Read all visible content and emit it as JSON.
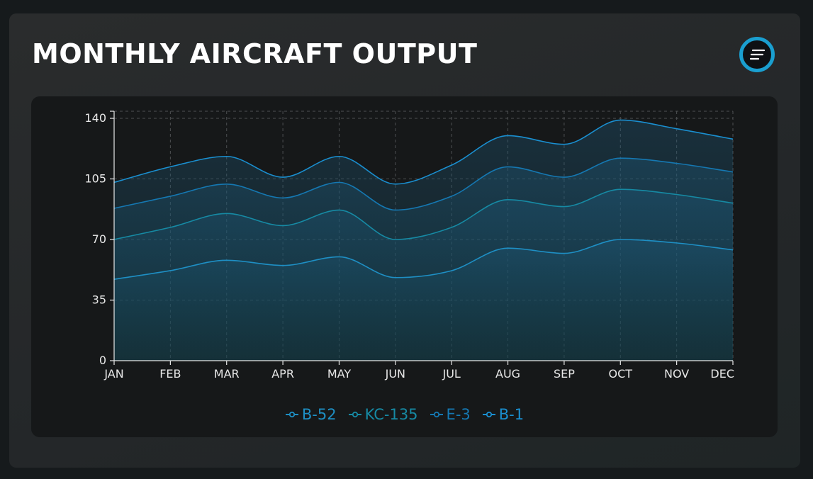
{
  "card": {
    "title": "MONTHLY AIRCRAFT OUTPUT",
    "menu_icon": "menu-lines-icon"
  },
  "chart_data": {
    "type": "area",
    "stacked": true,
    "categories": [
      "JAN",
      "FEB",
      "MAR",
      "APR",
      "MAY",
      "JUN",
      "JUL",
      "AUG",
      "SEP",
      "OCT",
      "NOV",
      "DEC"
    ],
    "series": [
      {
        "name": "B-52",
        "values": [
          47,
          52,
          58,
          55,
          60,
          48,
          52,
          65,
          62,
          70,
          68,
          64
        ],
        "color": "#1e8fc4"
      },
      {
        "name": "KC-135",
        "values": [
          23,
          25,
          27,
          23,
          27,
          22,
          25,
          28,
          27,
          29,
          28,
          27
        ],
        "color": "#168aa4"
      },
      {
        "name": "E-3",
        "values": [
          18,
          18,
          17,
          16,
          16,
          17,
          18,
          19,
          17,
          18,
          18,
          18
        ],
        "color": "#1578b2"
      },
      {
        "name": "B-1",
        "values": [
          15,
          17,
          16,
          12,
          15,
          15,
          18,
          18,
          19,
          22,
          20,
          19
        ],
        "color": "#1a8fd0"
      }
    ],
    "y_ticks": [
      0,
      35,
      70,
      105,
      140
    ],
    "ylim": [
      0,
      140
    ],
    "grid": true,
    "legend_position": "bottom"
  }
}
